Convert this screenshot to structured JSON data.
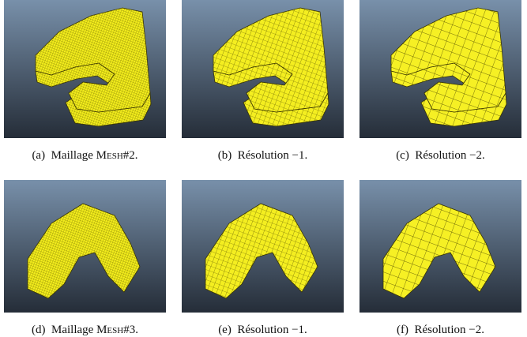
{
  "figures": [
    {
      "label": "(a)",
      "caption": "Maillage",
      "mesh": "Mesh#2."
    },
    {
      "label": "(b)",
      "caption": "Résolution −1."
    },
    {
      "label": "(c)",
      "caption": "Résolution −2."
    },
    {
      "label": "(d)",
      "caption": "Maillage",
      "mesh": "Mesh#3."
    },
    {
      "label": "(e)",
      "caption": "Résolution −1."
    },
    {
      "label": "(f)",
      "caption": "Résolution −2."
    }
  ]
}
